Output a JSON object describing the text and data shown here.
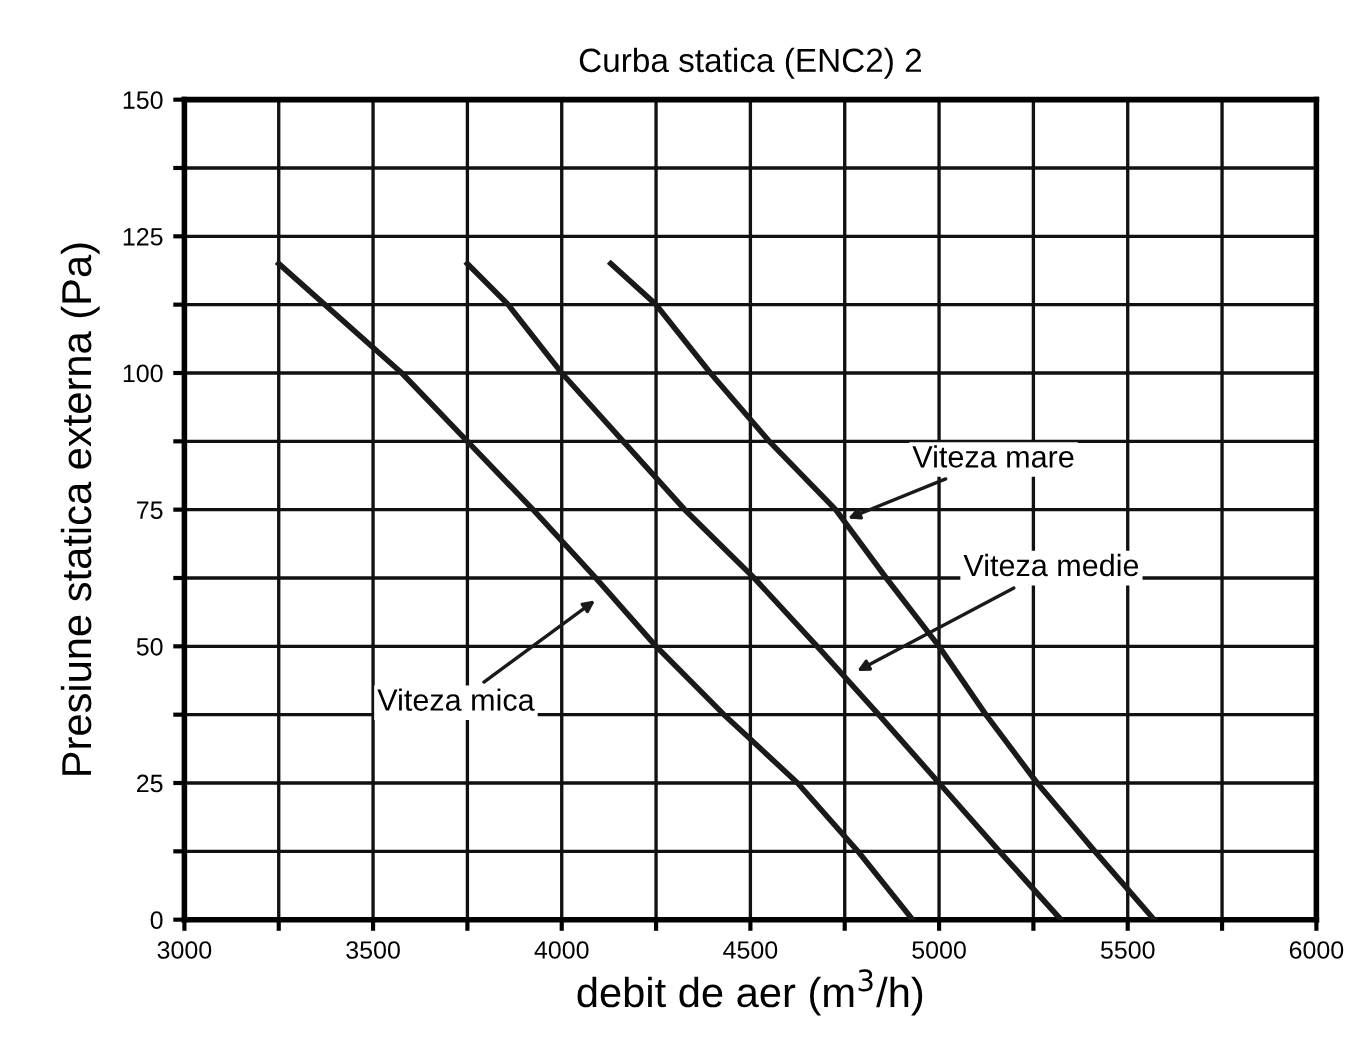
{
  "chart_data": {
    "type": "line",
    "title": "Curba statica (ENC2) 2",
    "xlabel": "debit de aer (m$^{3}$/h)",
    "ylabel": "Presiune statica externa (Pa)",
    "series": [
      {
        "x": [
          3250,
          3576,
          3750,
          3924,
          4090,
          4250,
          4430,
          4625,
          4785,
          4930
        ],
        "values": [
          120,
          100,
          87.5,
          75,
          62.5,
          50,
          37.5,
          25,
          12.5,
          0
        ],
        "color": "#1a1a1a"
      },
      {
        "x": [
          3750,
          3858,
          4000,
          4163,
          4326,
          4510,
          4677,
          4840,
          5000,
          5160,
          5323
        ],
        "values": [
          120,
          112.5,
          100,
          87.5,
          75,
          62.5,
          50,
          37.5,
          25,
          12.5,
          0
        ],
        "color": "#1a1a1a"
      },
      {
        "x": [
          4130,
          4250,
          4394,
          4550,
          4726,
          4860,
          5000,
          5124,
          5260,
          5413,
          5570
        ],
        "values": [
          120,
          112.5,
          100,
          87.5,
          75,
          62.5,
          50,
          37.5,
          25,
          12.5,
          0
        ],
        "color": "#1a1a1a"
      }
    ],
    "annotations": [
      {
        "text": "Viteza mica",
        "x": 4100,
        "y": 59
      },
      {
        "text": "Viteza mare",
        "x": 4745,
        "y": 73
      },
      {
        "text": "Viteza medie",
        "x": 4770,
        "y": 45
      }
    ],
    "xlim": [
      3000,
      6000
    ],
    "ylim": [
      0,
      150
    ],
    "xticks": [
      3000,
      {
        "value": 3250,
        "label": null
      },
      3500,
      {
        "value": 3750,
        "label": null
      },
      4000,
      {
        "value": 4250,
        "label": null
      },
      4500,
      {
        "value": 4750,
        "label": null
      },
      5000,
      {
        "value": 5250,
        "label": null
      },
      5500,
      {
        "value": 5750,
        "label": null
      },
      6000
    ],
    "yticks": [
      0,
      {
        "value": 12.5,
        "label": null
      },
      25,
      {
        "value": 37.5,
        "label": null
      },
      50,
      {
        "value": 62.5,
        "label": null
      },
      75,
      {
        "value": 87.5,
        "label": null
      },
      100,
      {
        "value": 112.5,
        "label": null
      },
      125,
      {
        "value": 137.5,
        "label": null
      },
      150
    ],
    "grid": true,
    "line_style": "solid",
    "marker": "none"
  }
}
